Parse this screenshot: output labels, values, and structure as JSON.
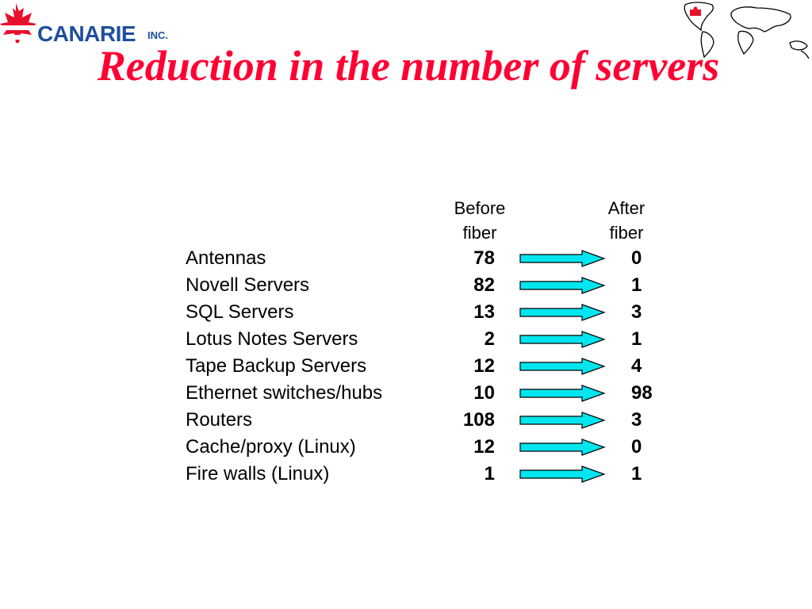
{
  "logo": {
    "name": "CANARIE",
    "suffix": "INC."
  },
  "title": "Reduction in the number of servers",
  "table": {
    "headers": {
      "before": [
        "Before",
        "fiber"
      ],
      "after": [
        "After",
        "fiber"
      ]
    },
    "rows": [
      {
        "label": "Antennas",
        "before": "78",
        "after": "0"
      },
      {
        "label": "Novell Servers",
        "before": "82",
        "after": "1"
      },
      {
        "label": "SQL Servers",
        "before": "13",
        "after": "3"
      },
      {
        "label": "Lotus Notes Servers",
        "before": "2",
        "after": "1"
      },
      {
        "label": "Tape Backup Servers",
        "before": "12",
        "after": "4"
      },
      {
        "label": "Ethernet switches/hubs",
        "before": "10",
        "after": "98"
      },
      {
        "label": "Routers",
        "before": "108",
        "after": "3"
      },
      {
        "label": "Cache/proxy (Linux)",
        "before": "12",
        "after": "0"
      },
      {
        "label": "Fire walls (Linux)",
        "before": "1",
        "after": "1"
      }
    ]
  },
  "colors": {
    "title": "#ff0033",
    "logo_text": "#1f4f9c",
    "leaf": "#e8112d",
    "arrow_fill": "#00e5ee"
  },
  "icons": {
    "logo": "maple-leaf-icon",
    "decoration": "world-map-icon",
    "row_arrow": "right-arrow-icon"
  }
}
